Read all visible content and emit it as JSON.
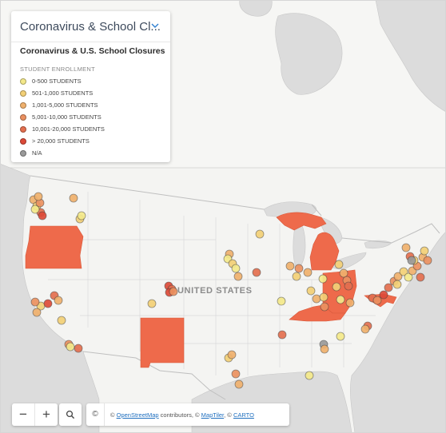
{
  "legend": {
    "title": "Coronavirus & School Cl...",
    "subtitle": "Coronavirus & U.S. School Closures",
    "section_label": "STUDENT ENROLLMENT",
    "items": [
      {
        "label": "0-500 STUDENTS",
        "color": "#f3e88a"
      },
      {
        "label": "501-1,000 STUDENTS",
        "color": "#f2cf76"
      },
      {
        "label": "1,001-5,000 STUDENTS",
        "color": "#efb06d"
      },
      {
        "label": "5,001-10,000 STUDENTS",
        "color": "#ea9060"
      },
      {
        "label": "10,001-20,000 STUDENTS",
        "color": "#e36f4f"
      },
      {
        "label": "> 20,000 STUDENTS",
        "color": "#dc4a38"
      },
      {
        "label": "N/A",
        "color": "#9a9a9a"
      }
    ]
  },
  "map": {
    "country_label": "UNITED STATES",
    "highlight_color": "#ee6a4b",
    "highlighted_states": [
      "Oregon",
      "New Mexico",
      "Michigan",
      "Ohio",
      "Kentucky",
      "Maryland"
    ]
  },
  "controls": {
    "zoom_out": "−",
    "zoom_in": "+",
    "search_icon": "search-icon"
  },
  "attribution": {
    "copyright": "©",
    "prefix": "©",
    "osm": "OpenStreetMap",
    "contributors": "contributors, ©",
    "maptiler": "MapTiler",
    "sep": ", ©",
    "carto": "CARTO"
  }
}
